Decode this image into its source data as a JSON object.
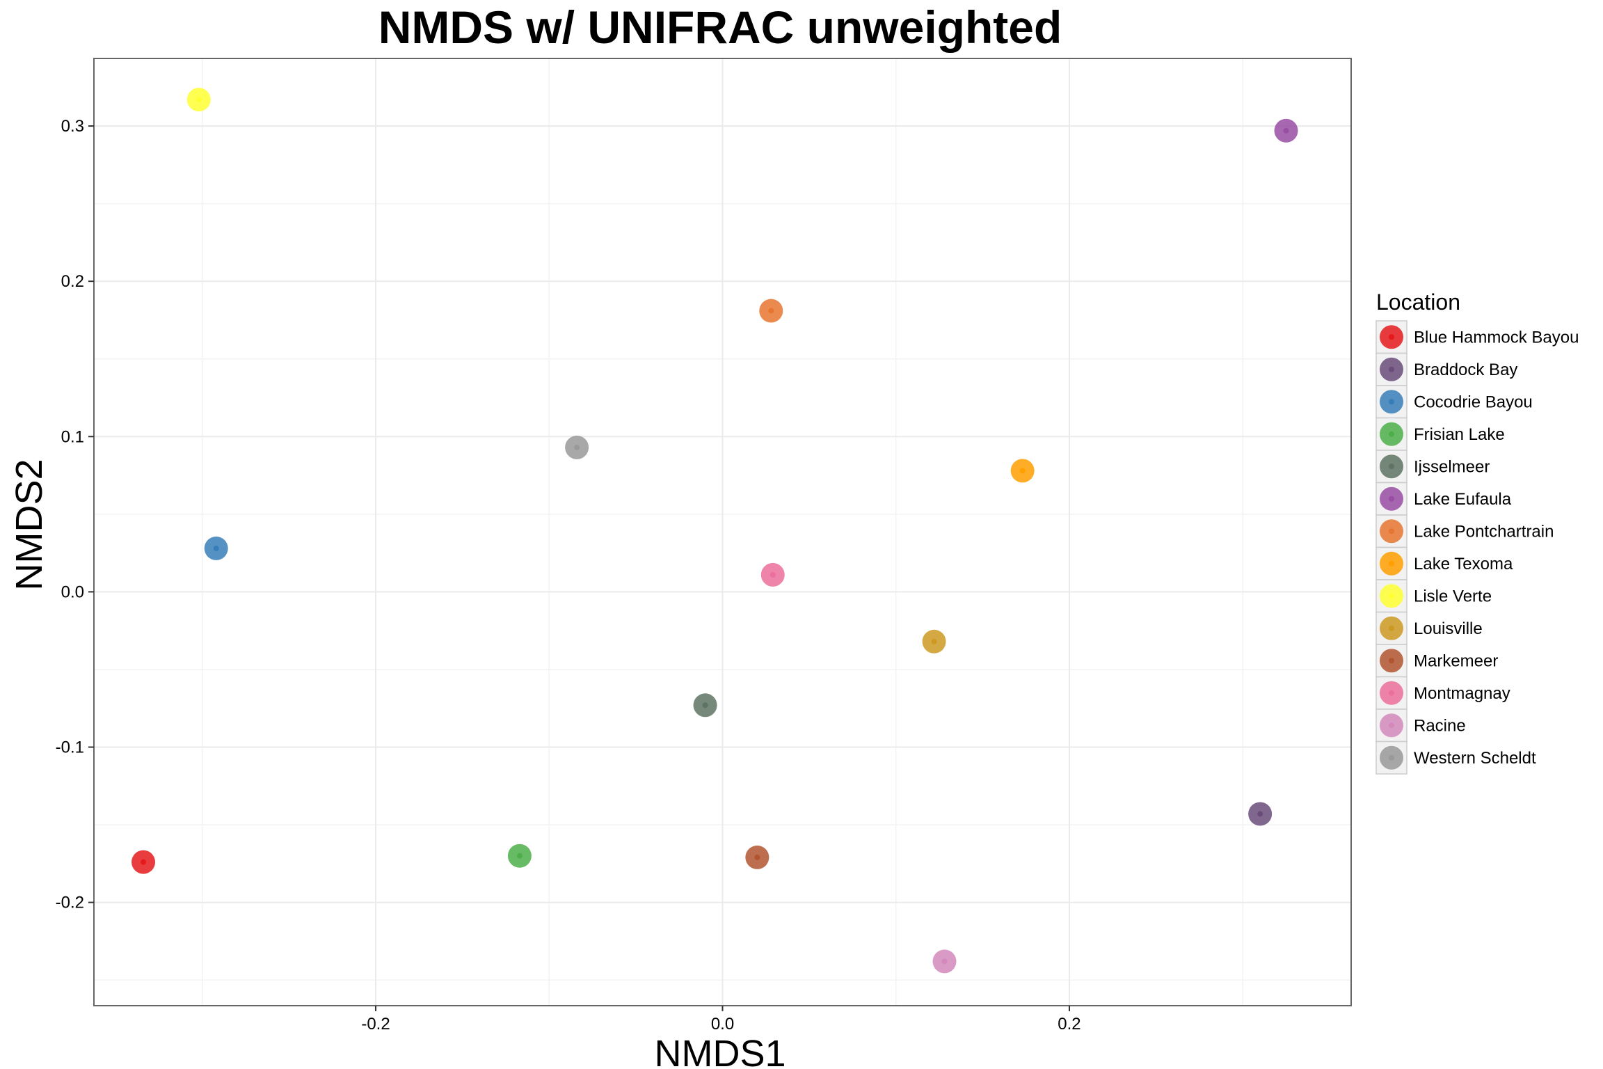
{
  "chart_data": {
    "type": "scatter",
    "title": "NMDS w/ UNIFRAC unweighted",
    "xlabel": "NMDS1",
    "ylabel": "NMDS2",
    "xlim": [
      -0.3625,
      0.3625
    ],
    "ylim": [
      -0.2665,
      0.3435
    ],
    "x_ticks": [
      -0.2,
      0.0,
      0.2
    ],
    "x_tick_labels": [
      "-0.2",
      "0.0",
      "0.2"
    ],
    "y_ticks": [
      -0.2,
      -0.1,
      0.0,
      0.1,
      0.2,
      0.3
    ],
    "y_tick_labels": [
      "-0.2",
      "-0.1",
      "0.0",
      "0.1",
      "0.2",
      "0.3"
    ],
    "grid": true,
    "legend": {
      "title": "Location",
      "position": "right"
    },
    "series": [
      {
        "name": "Blue Hammock Bayou",
        "color": "#e41a1c",
        "x": -0.334,
        "y": -0.174
      },
      {
        "name": "Braddock Bay",
        "color": "#6a4c7a",
        "x": 0.31,
        "y": -0.143
      },
      {
        "name": "Cocodrie Bayou",
        "color": "#377eb8",
        "x": -0.292,
        "y": 0.028
      },
      {
        "name": "Frisian Lake",
        "color": "#4daf4a",
        "x": -0.117,
        "y": -0.17
      },
      {
        "name": "Ijsselmeer",
        "color": "#5e7363",
        "x": -0.01,
        "y": -0.073
      },
      {
        "name": "Lake Eufaula",
        "color": "#984ea3",
        "x": 0.325,
        "y": 0.297
      },
      {
        "name": "Lake Pontchartrain",
        "color": "#e7752f",
        "x": 0.028,
        "y": 0.181
      },
      {
        "name": "Lake Texoma",
        "color": "#ff9f00",
        "x": 0.173,
        "y": 0.078
      },
      {
        "name": "Lisle Verte",
        "color": "#ffff33",
        "x": -0.302,
        "y": 0.317
      },
      {
        "name": "Louisville",
        "color": "#cc9a23",
        "x": 0.122,
        "y": -0.032
      },
      {
        "name": "Markemeer",
        "color": "#b15530",
        "x": 0.02,
        "y": -0.171
      },
      {
        "name": "Montmagnay",
        "color": "#ec6e9c",
        "x": 0.029,
        "y": 0.011
      },
      {
        "name": "Racine",
        "color": "#d488bc",
        "x": 0.128,
        "y": -0.238
      },
      {
        "name": "Western Scheldt",
        "color": "#999999",
        "x": -0.084,
        "y": 0.093
      }
    ]
  }
}
